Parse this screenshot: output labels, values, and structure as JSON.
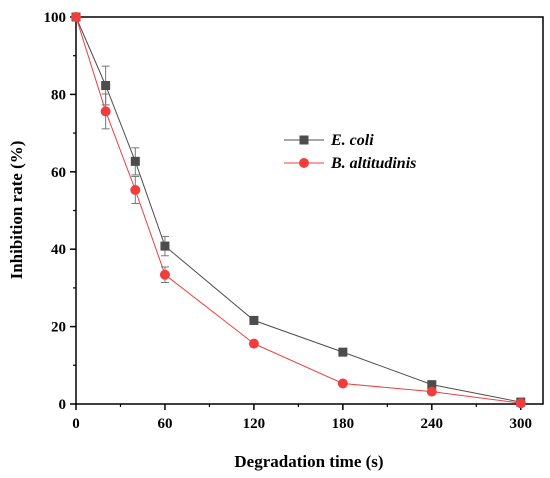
{
  "chart_data": {
    "type": "line",
    "xlabel": "Degradation time (s)",
    "ylabel": "Inhibition rate (%)",
    "xlim": [
      0,
      315
    ],
    "ylim": [
      0,
      100
    ],
    "x_ticks": [
      0,
      60,
      120,
      180,
      240,
      300
    ],
    "y_ticks": [
      0,
      20,
      40,
      60,
      80,
      100
    ],
    "legend_position": "center-right",
    "series": [
      {
        "name": "E. coli",
        "color": "#4d4d4d",
        "marker": "square",
        "x": [
          0,
          20,
          40,
          60,
          120,
          180,
          240,
          300
        ],
        "y": [
          100,
          82.3,
          62.7,
          40.8,
          21.6,
          13.4,
          5.0,
          0.5
        ],
        "error": [
          0,
          5.0,
          3.5,
          2.5,
          1.0,
          0.5,
          0.5,
          0.5
        ]
      },
      {
        "name": "B. altitudinis",
        "color": "#f23d3d",
        "marker": "circle",
        "x": [
          0,
          20,
          40,
          60,
          120,
          180,
          240,
          300
        ],
        "y": [
          100,
          75.6,
          55.3,
          33.4,
          15.6,
          5.3,
          3.2,
          0.2
        ],
        "error": [
          0,
          4.5,
          3.5,
          2.0,
          0.5,
          0.5,
          0.5,
          0.3
        ]
      }
    ]
  }
}
